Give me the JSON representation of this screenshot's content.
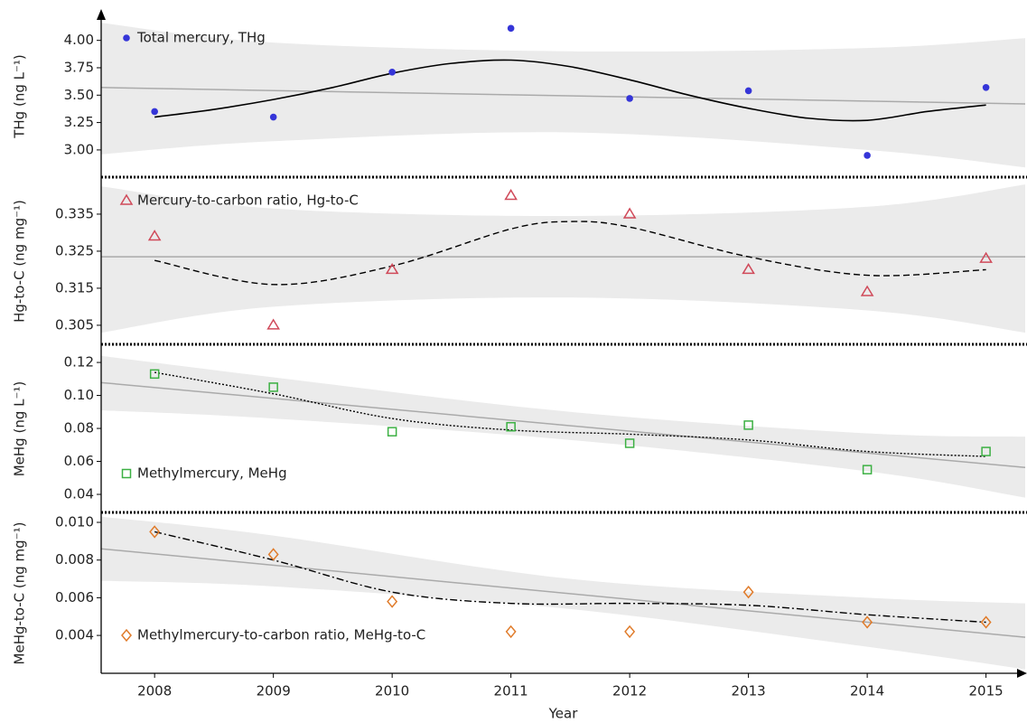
{
  "chart_data": [
    {
      "type": "scatter",
      "ylabel": "THg (ng L⁻¹)",
      "legend": "upper left",
      "xlim": [
        2007.55,
        2015.33
      ],
      "ylim": [
        2.76,
        4.22
      ],
      "yticks": [
        {
          "value": 3,
          "label": "3.00"
        },
        {
          "value": 3.25,
          "label": "3.25"
        },
        {
          "value": 3.5,
          "label": "3.50"
        },
        {
          "value": 3.75,
          "label": "3.75"
        },
        {
          "value": 4,
          "label": "4.00"
        }
      ],
      "series": [
        {
          "name": "Total mercury, THg",
          "color": "#3535d8",
          "marker": "circle",
          "x": [
            2008,
            2009,
            2010,
            2011,
            2012,
            2013,
            2014,
            2015
          ],
          "values": [
            3.35,
            3.3,
            3.71,
            4.11,
            3.47,
            3.54,
            2.95,
            3.57
          ]
        }
      ],
      "fit": {
        "style": "solid",
        "x": [
          2008,
          2008.5,
          2009,
          2009.5,
          2010,
          2010.5,
          2011,
          2011.5,
          2012,
          2012.5,
          2013,
          2013.5,
          2014,
          2014.5,
          2015
        ],
        "values": [
          3.3,
          3.37,
          3.46,
          3.57,
          3.7,
          3.79,
          3.82,
          3.76,
          3.64,
          3.5,
          3.38,
          3.29,
          3.27,
          3.35,
          3.41
        ]
      },
      "trend": {
        "color": "#aaaaaa",
        "x": [
          2007.55,
          2015.33
        ],
        "values": [
          3.57,
          3.42
        ]
      },
      "band": {
        "color": "#ebebeb",
        "x": [
          2007.55,
          2009,
          2011.5,
          2014,
          2015.33
        ],
        "lower": [
          2.96,
          3.08,
          3.16,
          3.0,
          2.84
        ],
        "upper": [
          4.16,
          3.98,
          3.9,
          3.93,
          4.02
        ]
      }
    },
    {
      "type": "scatter",
      "ylabel": "Hg-to-C (ng mg⁻¹)",
      "legend": "upper left",
      "xlim": [
        2007.55,
        2015.33
      ],
      "ylim": [
        0.3001,
        0.3445
      ],
      "yticks": [
        0.305,
        0.315,
        0.325,
        0.335
      ],
      "series": [
        {
          "name": "Mercury-to-carbon ratio, Hg-to-C",
          "color": "#d04a5a",
          "marker": "triangle",
          "x": [
            2008,
            2009,
            2010,
            2011,
            2012,
            2013,
            2014,
            2015
          ],
          "values": [
            0.329,
            0.305,
            0.32,
            0.34,
            0.335,
            0.32,
            0.314,
            0.323
          ]
        }
      ],
      "fit": {
        "style": "dashed",
        "x": [
          2008,
          2009,
          2010,
          2011,
          2011.5,
          2012,
          2013,
          2014,
          2015
        ],
        "values": [
          0.3225,
          0.316,
          0.321,
          0.331,
          0.333,
          0.3315,
          0.3235,
          0.3185,
          0.32
        ]
      },
      "trend": {
        "color": "#aaaaaa",
        "x": [
          2007.55,
          2015.33
        ],
        "values": [
          0.3235,
          0.3235
        ]
      },
      "band": {
        "color": "#ebebeb",
        "x": [
          2007.55,
          2009,
          2011.5,
          2014,
          2015.33
        ],
        "lower": [
          0.303,
          0.31,
          0.3125,
          0.309,
          0.303
        ],
        "upper": [
          0.3425,
          0.3365,
          0.3345,
          0.337,
          0.343
        ]
      }
    },
    {
      "type": "scatter",
      "ylabel": "MeHg (ng L⁻¹)",
      "legend": "lower left",
      "xlim": [
        2007.55,
        2015.33
      ],
      "ylim": [
        0.0296,
        0.1299
      ],
      "yticks": [
        0.04,
        0.06,
        0.08,
        {
          "value": 0.1,
          "label": "0.10"
        },
        0.12
      ],
      "series": [
        {
          "name": "Methylmercury, MeHg",
          "color": "#3cb043",
          "marker": "square",
          "x": [
            2008,
            2009,
            2010,
            2011,
            2012,
            2013,
            2014,
            2015
          ],
          "values": [
            0.113,
            0.105,
            0.078,
            0.081,
            0.071,
            0.082,
            0.055,
            0.066
          ]
        }
      ],
      "fit": {
        "style": "dotted",
        "x": [
          2008,
          2009,
          2010,
          2011,
          2012,
          2013,
          2014,
          2015
        ],
        "values": [
          0.114,
          0.101,
          0.086,
          0.079,
          0.0765,
          0.073,
          0.066,
          0.063
        ]
      },
      "trend": {
        "color": "#aaaaaa",
        "x": [
          2007.55,
          2015.33
        ],
        "values": [
          0.1078,
          0.0563
        ]
      },
      "band": {
        "color": "#ebebeb",
        "x": [
          2007.55,
          2009,
          2011.5,
          2014,
          2015.33
        ],
        "lower": [
          0.091,
          0.086,
          0.073,
          0.054,
          0.038
        ],
        "upper": [
          0.124,
          0.111,
          0.09,
          0.077,
          0.075
        ]
      }
    },
    {
      "type": "scatter",
      "ylabel": "MeHg-to-C (ng mg⁻¹)",
      "legend": "lower left",
      "xlabel": "Year",
      "xlim": [
        2007.55,
        2015.33
      ],
      "xticks": [
        2008,
        2009,
        2010,
        2011,
        2012,
        2013,
        2014,
        2015
      ],
      "ylim": [
        0.00199,
        0.01048
      ],
      "yticks": [
        {
          "value": 0.004,
          "label": "0.004"
        },
        {
          "value": 0.006,
          "label": "0.006"
        },
        {
          "value": 0.008,
          "label": "0.008"
        },
        {
          "value": 0.01,
          "label": "0.010"
        }
      ],
      "series": [
        {
          "name": "Methylmercury-to-carbon ratio, MeHg-to-C",
          "color": "#e07b2a",
          "marker": "diamond",
          "x": [
            2008,
            2009,
            2010,
            2011,
            2012,
            2013,
            2014,
            2015
          ],
          "values": [
            0.0095,
            0.0083,
            0.0058,
            0.0042,
            0.0042,
            0.0063,
            0.0047,
            0.0047
          ]
        }
      ],
      "fit": {
        "style": "dashdot",
        "x": [
          2008,
          2009,
          2010,
          2011,
          2012,
          2013,
          2014,
          2015
        ],
        "values": [
          0.0095,
          0.008,
          0.0063,
          0.0057,
          0.0057,
          0.0056,
          0.0051,
          0.0047
        ]
      },
      "trend": {
        "color": "#aaaaaa",
        "x": [
          2007.55,
          2015.33
        ],
        "values": [
          0.0086,
          0.0039
        ]
      },
      "band": {
        "color": "#ebebeb",
        "x": [
          2007.55,
          2009,
          2011.5,
          2014,
          2015.33
        ],
        "lower": [
          0.0069,
          0.0066,
          0.0054,
          0.0034,
          0.0022
        ],
        "upper": [
          0.0103,
          0.0093,
          0.007,
          0.006,
          0.0057
        ]
      }
    }
  ]
}
